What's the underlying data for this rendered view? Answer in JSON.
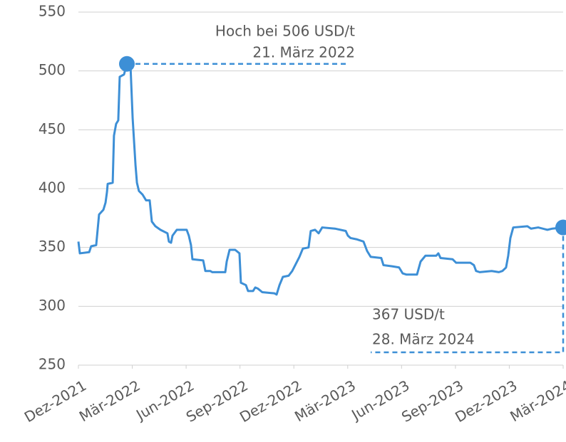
{
  "chart_data": {
    "type": "line",
    "x": [
      0,
      0.08,
      0.6,
      0.71,
      0.99,
      1.07,
      1.15,
      1.39,
      1.51,
      1.59,
      1.63,
      1.91,
      1.98,
      2.1,
      2.22,
      2.3,
      2.54,
      2.7,
      2.9,
      3.02,
      3.18,
      3.26,
      3.37,
      3.57,
      3.77,
      3.97,
      4.09,
      4.29,
      4.57,
      4.96,
      5.04,
      5.16,
      5.24,
      5.48,
      6.03,
      6.15,
      6.27,
      6.35,
      6.95,
      7.07,
      7.34,
      7.46,
      8.18,
      8.26,
      8.42,
      8.73,
      8.97,
      9.05,
      9.33,
      9.45,
      9.73,
      9.85,
      10,
      10.24,
      10.92,
      11.04,
      11.2,
      11.39,
      11.71,
      11.91,
      12.11,
      12.31,
      12.5,
      12.82,
      12.94,
      13.18,
      13.38,
      13.58,
      14.29,
      14.89,
      15.01,
      15.16,
      15.48,
      15.88,
      16.08,
      16.28,
      16.87,
      16.99,
      17.47,
      17.86,
      18.06,
      18.26,
      18.86,
      19.06,
      19.33,
      19.93,
      20.05,
      20.17,
      20.84,
      21.04,
      21.83,
      22.03,
      22.15,
      22.35,
      23.02,
      23.42,
      23.62,
      23.82,
      23.94,
      24.06,
      24.22,
      25.01,
      25.21,
      25.61,
      26.12,
      26.4,
      27
    ],
    "series": [
      {
        "color": "#3d8fd6",
        "values": [
          355,
          345,
          346,
          351,
          352,
          365,
          378,
          382,
          388,
          397,
          404,
          405,
          445,
          455,
          458,
          495,
          497,
          506,
          505,
          460,
          420,
          405,
          398,
          395,
          390,
          390,
          372,
          368,
          365,
          362,
          355,
          354,
          360,
          365,
          365,
          360,
          352,
          340,
          339,
          330,
          330,
          329,
          329,
          338,
          348,
          348,
          345,
          320,
          318,
          313,
          313,
          316,
          315,
          312,
          311,
          310,
          318,
          325,
          326,
          330,
          336,
          342,
          349,
          350,
          364,
          365,
          362,
          367,
          366,
          364,
          360,
          358,
          357,
          355,
          347,
          342,
          341,
          335,
          334,
          333,
          328,
          327,
          327,
          338,
          343,
          343,
          345,
          341,
          340,
          337,
          337,
          335,
          330,
          329,
          330,
          329,
          330,
          333,
          343,
          358,
          367,
          368,
          366,
          367,
          365,
          366,
          367
        ]
      }
    ],
    "xlim": [
      0,
      27
    ],
    "xticks": [
      {
        "value": 0,
        "label": "Dez-2021"
      },
      {
        "value": 3,
        "label": "Mär-2022"
      },
      {
        "value": 6,
        "label": "Jun-2022"
      },
      {
        "value": 9,
        "label": "Sep-2022"
      },
      {
        "value": 12,
        "label": "Dez-2022"
      },
      {
        "value": 15,
        "label": "Mär-2023"
      },
      {
        "value": 18,
        "label": "Jun-2023"
      },
      {
        "value": 21,
        "label": "Sep-2023"
      },
      {
        "value": 24,
        "label": "Dez-2023"
      },
      {
        "value": 27,
        "label": "Mär-2024"
      }
    ],
    "ylim": [
      250,
      550
    ],
    "yticks": [
      250,
      300,
      350,
      400,
      450,
      500,
      550
    ],
    "grid": true,
    "annotations": [
      {
        "lines": [
          "Hoch bei 506 USD/t",
          "21. März 2022"
        ]
      },
      {
        "lines": [
          "367 USD/t",
          "28. März 2024"
        ]
      }
    ]
  }
}
